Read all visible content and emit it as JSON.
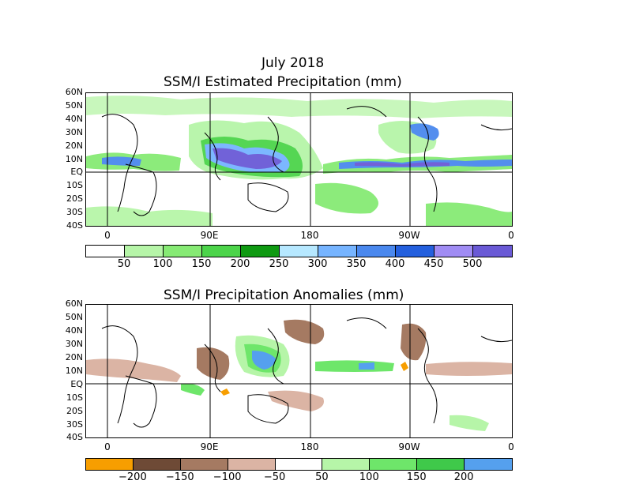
{
  "header": {
    "date": "July 2018",
    "title_top": "SSM/I Estimated Precipitation (mm)",
    "title_bottom": "SSM/I Precipitation Anomalies (mm)"
  },
  "map": {
    "lat_labels": [
      "60N",
      "50N",
      "40N",
      "30N",
      "20N",
      "10N",
      "EQ",
      "10S",
      "20S",
      "30S",
      "40S"
    ],
    "lon_labels": [
      "0",
      "90E",
      "180",
      "90W",
      "0"
    ]
  },
  "colorbar_top": {
    "colors": [
      "#ffffff",
      "#b6f5a8",
      "#86ea74",
      "#4cd44a",
      "#0f9a12",
      "#b6e8ff",
      "#76b4ff",
      "#4a88ee",
      "#2460de",
      "#a08cf4",
      "#6a5ad6"
    ],
    "labels": [
      "50",
      "100",
      "150",
      "200",
      "250",
      "300",
      "350",
      "400",
      "450",
      "500"
    ]
  },
  "colorbar_bottom": {
    "colors": [
      "#f79e00",
      "#6e4a36",
      "#a57a62",
      "#dbb4a4",
      "#ffffff",
      "#b6f5a8",
      "#6ee66a",
      "#3fc94a",
      "#55a0ee"
    ],
    "labels": [
      "−200",
      "−150",
      "−100",
      "−50",
      "50",
      "100",
      "150",
      "200"
    ]
  },
  "colors": {
    "coast": "#000000",
    "grid": "#000000"
  }
}
